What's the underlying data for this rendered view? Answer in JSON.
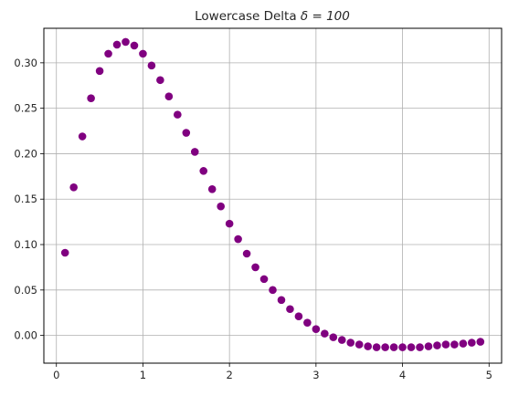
{
  "chart_data": {
    "type": "scatter",
    "title_text": "Lowercase Delta ",
    "title_math": "δ = 100",
    "xlabel": "",
    "ylabel": "",
    "xlim": [
      -0.145,
      5.145
    ],
    "ylim": [
      -0.0305,
      0.338
    ],
    "x_ticks": [
      0,
      1,
      2,
      3,
      4,
      5
    ],
    "x_tick_labels": [
      "0",
      "1",
      "2",
      "3",
      "4",
      "5"
    ],
    "y_ticks": [
      0.0,
      0.05,
      0.1,
      0.15,
      0.2,
      0.25,
      0.3
    ],
    "y_tick_labels": [
      "0.00",
      "0.05",
      "0.10",
      "0.15",
      "0.20",
      "0.25",
      "0.30"
    ],
    "grid": true,
    "marker_color": "#800080",
    "series": [
      {
        "x": [
          0.1,
          0.2,
          0.3,
          0.4,
          0.5,
          0.6,
          0.7,
          0.8,
          0.9,
          1.0,
          1.1,
          1.2,
          1.3,
          1.4,
          1.5,
          1.6,
          1.7,
          1.8,
          1.9,
          2.0,
          2.1,
          2.2,
          2.3,
          2.4,
          2.5,
          2.6,
          2.7,
          2.8,
          2.9,
          3.0,
          3.1,
          3.2,
          3.3,
          3.4,
          3.5,
          3.6,
          3.7,
          3.8,
          3.9,
          4.0,
          4.1,
          4.2,
          4.3,
          4.4,
          4.5,
          4.6,
          4.7,
          4.8,
          4.9
        ],
        "y": [
          0.091,
          0.163,
          0.219,
          0.261,
          0.291,
          0.31,
          0.32,
          0.323,
          0.319,
          0.31,
          0.297,
          0.281,
          0.263,
          0.243,
          0.223,
          0.202,
          0.181,
          0.161,
          0.142,
          0.123,
          0.106,
          0.09,
          0.075,
          0.062,
          0.05,
          0.039,
          0.029,
          0.021,
          0.014,
          0.007,
          0.002,
          -0.002,
          -0.005,
          -0.008,
          -0.01,
          -0.012,
          -0.013,
          -0.013,
          -0.013,
          -0.013,
          -0.013,
          -0.013,
          -0.012,
          -0.011,
          -0.01,
          -0.01,
          -0.009,
          -0.008,
          -0.007
        ]
      }
    ]
  }
}
